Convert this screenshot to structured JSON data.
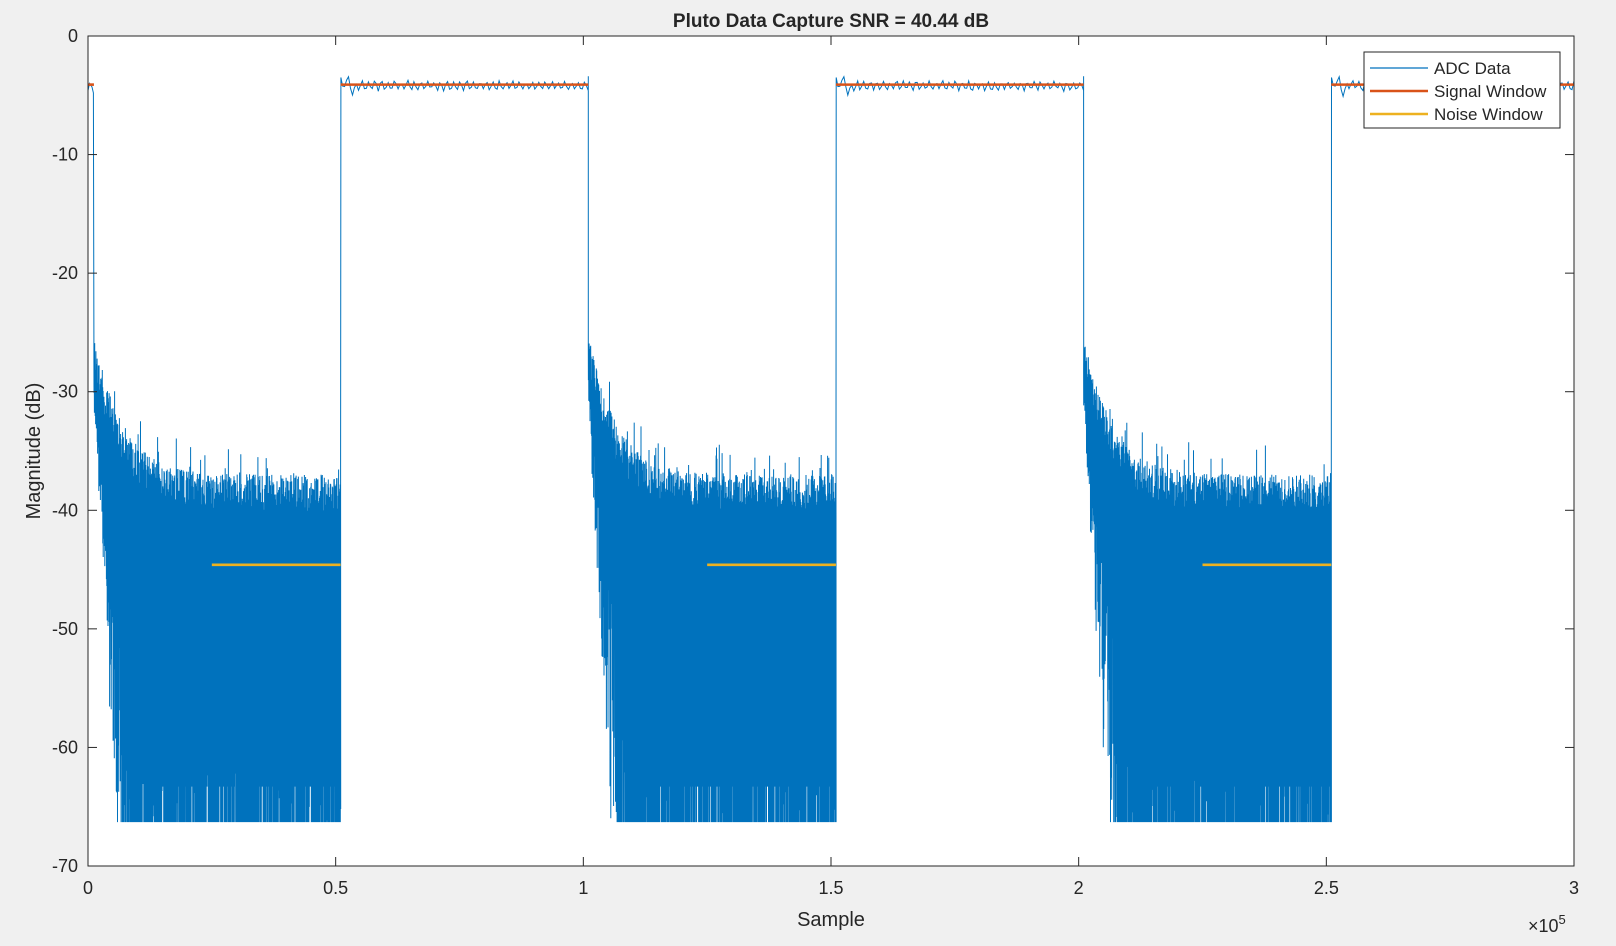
{
  "chart_data": {
    "type": "line",
    "title": "Pluto Data Capture SNR = 40.44 dB",
    "xlabel": "Sample",
    "ylabel": "Magnitude (dB)",
    "xlim": [
      0,
      300000
    ],
    "ylim": [
      -70,
      0
    ],
    "x_exponent_label": "×10",
    "x_exponent_power": "5",
    "x_ticks": [
      0,
      50000,
      100000,
      150000,
      200000,
      250000,
      300000
    ],
    "x_tick_labels": [
      "0",
      "0.5",
      "1",
      "1.5",
      "2",
      "2.5",
      "3"
    ],
    "y_ticks": [
      0,
      -10,
      -20,
      -30,
      -40,
      -50,
      -60,
      -70
    ],
    "y_tick_labels": [
      "0",
      "-10",
      "-20",
      "-30",
      "-40",
      "-50",
      "-60",
      "-70"
    ],
    "grid": false,
    "legend_position": "top-right",
    "colors": {
      "adc": "#0072bd",
      "signal": "#d95319",
      "noise": "#edb120",
      "axes_bg": "#ffffff",
      "figure_bg": "#f0f0f0",
      "axis": "#262626"
    },
    "series": [
      {
        "name": "ADC Data",
        "description_points": {
          "on_level_db": -4.2,
          "noise_floor_min_db": -66.3,
          "noise_upper_db": -37,
          "transient_start_db": -25
        },
        "on_segments": [
          [
            0,
            1200
          ],
          [
            51000,
            101000
          ],
          [
            151000,
            201000
          ],
          [
            251000,
            300000
          ]
        ],
        "off_segments": [
          [
            1200,
            51000
          ],
          [
            101000,
            151000
          ],
          [
            201000,
            251000
          ]
        ]
      },
      {
        "name": "Signal Window",
        "segments": [
          {
            "x": [
              0,
              1200
            ],
            "y": -4.1
          },
          {
            "x": [
              51000,
              101000
            ],
            "y": -4.1
          },
          {
            "x": [
              151000,
              201000
            ],
            "y": -4.1
          },
          {
            "x": [
              251000,
              300000
            ],
            "y": -4.1
          }
        ]
      },
      {
        "name": "Noise Window",
        "segments": [
          {
            "x": [
              25000,
              51000
            ],
            "y": -44.6
          },
          {
            "x": [
              125000,
              151000
            ],
            "y": -44.6
          },
          {
            "x": [
              225000,
              251000
            ],
            "y": -44.6
          }
        ]
      }
    ]
  }
}
